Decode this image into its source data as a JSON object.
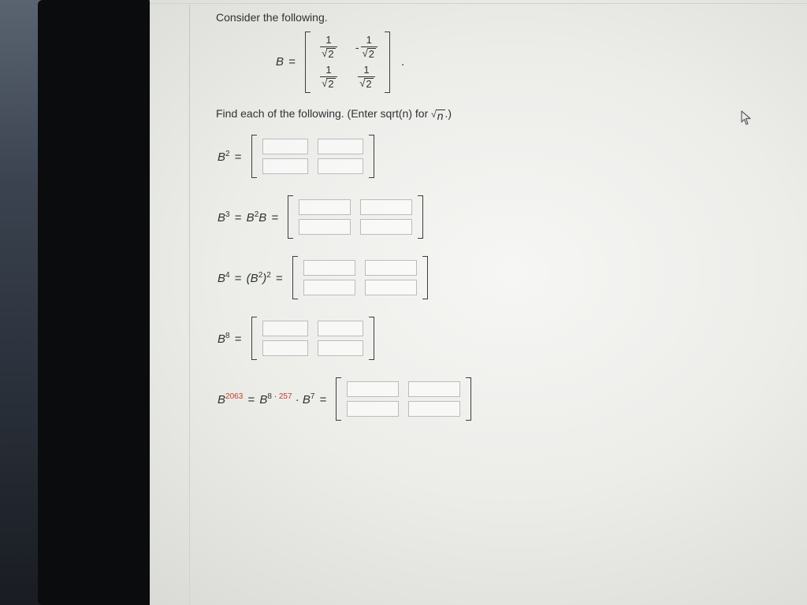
{
  "prompt_text": "Consider the following.",
  "find_text_prefix": "Find each of the following. (Enter sqrt(n) for ",
  "find_hint_radicand": "n",
  "find_text_suffix": ".)",
  "matrix_label": "B",
  "given_matrix": {
    "rows": [
      [
        {
          "num": "1",
          "den_rad": "2",
          "sign": ""
        },
        {
          "num": "1",
          "den_rad": "2",
          "sign": "-"
        }
      ],
      [
        {
          "num": "1",
          "den_rad": "2",
          "sign": ""
        },
        {
          "num": "1",
          "den_rad": "2",
          "sign": ""
        }
      ]
    ]
  },
  "questions": [
    {
      "lhs_html": "B<sup>2</sup> <span class='eqsign'>=</span>",
      "rows": 2,
      "cols": 2,
      "input_w": 58
    },
    {
      "lhs_html": "B<sup>3</sup> <span class='eqsign'>=</span> B<sup>2</sup>B <span class='eqsign'>=</span>",
      "rows": 2,
      "cols": 2,
      "input_w": 66
    },
    {
      "lhs_html": "B<sup>4</sup> <span class='eqsign'>=</span> (B<sup>2</sup>)<sup>2</sup> <span class='eqsign'>=</span>",
      "rows": 2,
      "cols": 2,
      "input_w": 66
    },
    {
      "lhs_html": "B<sup>8</sup> <span class='eqsign'>=</span>",
      "rows": 2,
      "cols": 2,
      "input_w": 58
    },
    {
      "lhs_html": "B<sup><span class='red'>2063</span></sup> <span class='eqsign'>=</span> B<sup>8 · <span class='red'>257</span></sup> · B<sup>7</sup> <span class='eqsign'>=</span>",
      "rows": 2,
      "cols": 2,
      "input_w": 66
    }
  ],
  "colors": {
    "text": "#2f3133",
    "accent_red": "#c63a2a",
    "input_border": "#b9bcc0",
    "bracket": "#3b3d3f"
  }
}
